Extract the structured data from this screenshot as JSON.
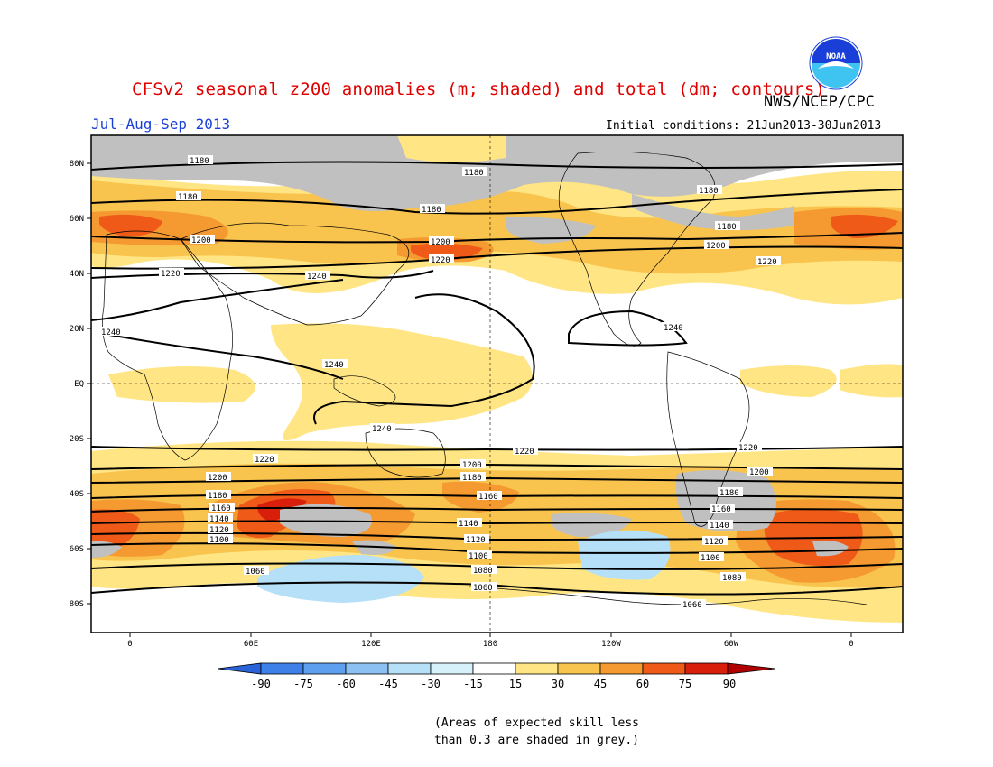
{
  "header": {
    "title": "CFSv2 seasonal z200 anomalies (m; shaded) and total (dm; contours)",
    "agency": "NWS/NCEP/CPC",
    "season": "Jul-Aug-Sep 2013",
    "initial_conditions": "Initial conditions: 21Jun2013-30Jun2013",
    "logo_text": "NOAA"
  },
  "map": {
    "lat_labels": [
      "80N",
      "60N",
      "40N",
      "20N",
      "EQ",
      "20S",
      "40S",
      "60S",
      "80S"
    ],
    "lon_labels": [
      "0",
      "60E",
      "120E",
      "180",
      "120W",
      "60W",
      "0"
    ],
    "contour_labels": [
      "1060",
      "1080",
      "1100",
      "1120",
      "1140",
      "1160",
      "1180",
      "1200",
      "1220",
      "1240"
    ],
    "colors": {
      "neg90": "#2a62d8",
      "neg75": "#3c80e8",
      "neg60": "#5f9fef",
      "neg45": "#8cc0f3",
      "neg30": "#b6e0f7",
      "neg15": "#ffffff",
      "pos15": "#ffe583",
      "pos30": "#f9c44e",
      "pos45": "#f49a30",
      "pos60": "#ef5a18",
      "pos75": "#d81f0c",
      "pos90": "#b00000",
      "grey": "#c0c0c0"
    }
  },
  "colorbar": {
    "labels": [
      "-90",
      "-75",
      "-60",
      "-45",
      "-30",
      "-15",
      "15",
      "30",
      "45",
      "60",
      "75",
      "90"
    ]
  },
  "footnote": "(Areas of expected skill less\nthan 0.3 are shaded in grey.)"
}
